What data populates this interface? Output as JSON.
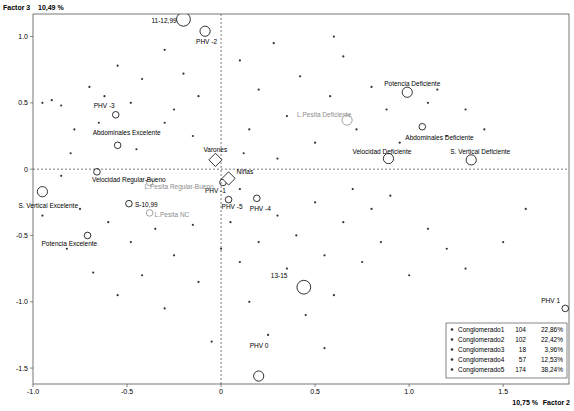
{
  "chart_data": {
    "type": "scatter",
    "ylabel": "Factor 3",
    "ylabel_inertia": "10,49 %",
    "xlabel": "Factor 2",
    "xlabel_inertia": "10,75 %",
    "xlim": [
      -1.0,
      1.85
    ],
    "ylim": [
      -1.62,
      1.17
    ],
    "xticks": [
      {
        "value": -1,
        "label": "-1.0"
      },
      -0.5,
      0,
      0.5,
      {
        "value": 1,
        "label": "1.0"
      },
      1.5
    ],
    "yticks": [
      {
        "value": 1,
        "label": "1.0"
      },
      0.5,
      0,
      -0.5,
      {
        "value": -1,
        "label": "-1.0"
      },
      -1.5
    ],
    "grid": false,
    "legend": "bottom-right",
    "series": [
      {
        "type": "labeled",
        "marker": "circle",
        "color": "#000000",
        "labels": [
          "11-12,99",
          "PHV -2",
          "PHV -3",
          "Abdominales Excelente",
          "Potencia Deficiente",
          "Abdominales Deficiente",
          "Velocidad Deficiente",
          "S. Vertical Deficiente",
          "PHV -1",
          "PHV -5",
          "PHV -4",
          "Velocidad Regular-Bueno",
          "S-10,99",
          "S. Vertical Excelente",
          "Potencia Excelente",
          "13-15",
          "PHV 0",
          "PHV 1"
        ],
        "x": [
          -0.2,
          -0.085,
          -0.56,
          -0.55,
          0.99,
          1.07,
          0.89,
          1.33,
          0.01,
          0.04,
          0.19,
          -0.66,
          -0.49,
          -0.95,
          -0.71,
          0.44,
          0.2,
          1.83
        ],
        "values": [
          1.13,
          1.04,
          0.41,
          0.18,
          0.58,
          0.32,
          0.08,
          0.07,
          -0.1,
          -0.23,
          -0.22,
          -0.02,
          -0.26,
          -0.17,
          -0.5,
          -0.89,
          -1.56,
          -1.05
        ],
        "sizes": [
          3,
          2,
          1,
          1,
          2,
          1,
          2,
          2,
          1,
          1,
          1,
          1,
          1,
          2,
          1,
          3,
          2,
          1
        ]
      },
      {
        "type": "labeled",
        "marker": "circle",
        "color": "#8c8c8c",
        "labels": [
          "L.Pesita Deficiente",
          "L.Pesita Regular-Bueno",
          "L.Pesita NC"
        ],
        "x": [
          0.67,
          -0.38,
          -0.38
        ],
        "values": [
          0.37,
          -0.1,
          -0.33
        ],
        "sizes": [
          2,
          1,
          1
        ]
      },
      {
        "type": "labeled",
        "marker": "diamond",
        "color": "#000000",
        "labels": [
          "Varones",
          "Niñas"
        ],
        "x": [
          -0.03,
          0.04
        ],
        "values": [
          0.07,
          -0.07
        ],
        "sizes": [
          2,
          2
        ]
      },
      {
        "name": "Conglomerado1",
        "count": 104,
        "share": "22,86%",
        "marker": "dot",
        "color": "#333333",
        "x": [
          -0.95,
          -0.9,
          -0.85,
          -0.78,
          -0.7,
          -0.62,
          -0.55,
          -0.48,
          -0.42,
          -0.3,
          -0.3,
          -0.25,
          -0.2,
          -0.15,
          -0.45,
          -0.8,
          -0.65,
          -0.12
        ],
        "values": [
          0.5,
          0.52,
          0.48,
          0.3,
          0.62,
          0.55,
          0.78,
          0.5,
          0.68,
          0.35,
          0.9,
          0.45,
          0.72,
          0.25,
          0.15,
          0.12,
          0.35,
          0.55
        ]
      },
      {
        "name": "Conglomerado2",
        "count": 102,
        "share": "22,42%",
        "marker": "dot",
        "color": "#333333",
        "x": [
          0.1,
          0.2,
          0.28,
          0.35,
          0.42,
          0.5,
          0.58,
          0.65,
          0.72,
          0.8,
          0.88,
          0.95,
          1.1,
          1.15,
          1.2,
          1.3,
          1.4,
          0.15,
          0.6
        ],
        "values": [
          0.82,
          0.6,
          0.95,
          0.4,
          0.7,
          0.2,
          0.55,
          0.85,
          0.3,
          0.62,
          0.45,
          0.2,
          0.5,
          0.6,
          0.25,
          0.45,
          0.3,
          0.3,
          1.0
        ]
      },
      {
        "name": "Conglomerado3",
        "count": 18,
        "share": "3,96%",
        "marker": "dot",
        "color": "#333333",
        "x": [
          1.1,
          1.2,
          1.3,
          1.5,
          1.62,
          1.0
        ],
        "values": [
          -0.45,
          -0.6,
          -0.75,
          -0.55,
          -0.3,
          -0.8
        ]
      },
      {
        "name": "Conglomerado4",
        "count": 57,
        "share": "12,53%",
        "marker": "dot",
        "color": "#333333",
        "x": [
          -0.95,
          -0.85,
          -0.82,
          -0.75,
          -0.68,
          -0.6,
          -0.55,
          -0.48,
          -0.42,
          -0.35,
          -0.3,
          -0.25,
          -0.15,
          -0.12
        ],
        "values": [
          -0.35,
          -0.05,
          -0.6,
          -0.3,
          -0.78,
          -0.4,
          -0.95,
          -0.55,
          -0.8,
          -0.45,
          -1.05,
          -0.65,
          -0.42,
          -0.85
        ]
      },
      {
        "name": "Conglomerado5",
        "count": 174,
        "share": "38,24%",
        "marker": "dot",
        "color": "#333333",
        "x": [
          0.05,
          0.1,
          0.15,
          0.2,
          0.25,
          0.3,
          0.35,
          0.4,
          0.45,
          0.5,
          0.55,
          0.6,
          0.65,
          0.7,
          0.75,
          0.8,
          0.85,
          0.9,
          0.0,
          0.12,
          0.1,
          0.3,
          -0.05,
          0.55
        ],
        "values": [
          -0.4,
          -0.7,
          -1.0,
          -0.55,
          -1.25,
          -0.35,
          -0.75,
          -0.5,
          -1.1,
          -0.25,
          -0.65,
          -0.95,
          -0.4,
          -0.15,
          -0.7,
          -0.3,
          -0.55,
          -0.2,
          -0.6,
          0.12,
          -0.15,
          0.08,
          -1.3,
          -1.35
        ]
      }
    ]
  }
}
